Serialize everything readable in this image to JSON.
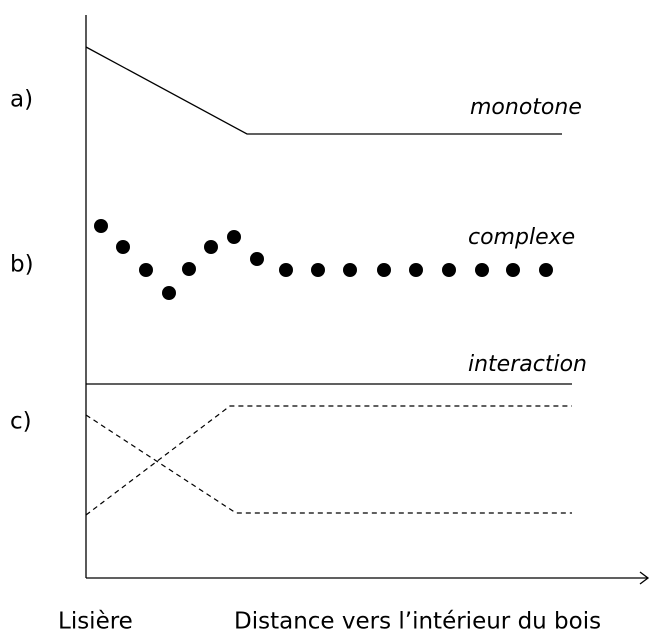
{
  "panels": [
    {
      "label": "a)",
      "curve": "monotone"
    },
    {
      "label": "b)",
      "curve": "complexe"
    },
    {
      "label": "c)",
      "curve": "interaction"
    }
  ],
  "x_axis": {
    "start_label": "Lisière",
    "label": "Distance vers l’intérieur du bois"
  }
}
